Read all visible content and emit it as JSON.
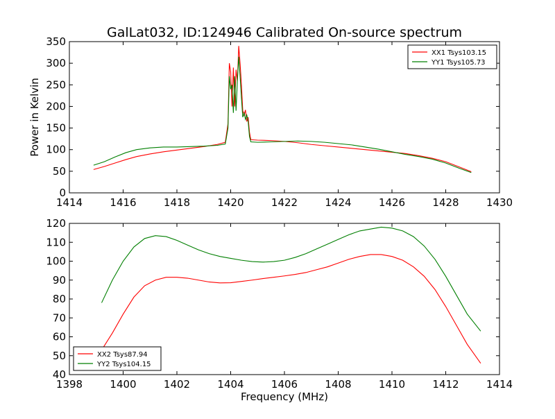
{
  "title": "GalLat032, ID:124946 Calibrated On-source spectrum",
  "colors": {
    "xx": "#ff0000",
    "yy": "#007f00",
    "axes": "#000000",
    "background": "#ffffff"
  },
  "chart_data": [
    {
      "type": "line",
      "title": "GalLat032, ID:124946 Calibrated On-source spectrum",
      "xlabel": "",
      "ylabel": "Power in Kelvin",
      "xlim": [
        1414,
        1430
      ],
      "ylim": [
        0,
        350
      ],
      "xticks": [
        1414,
        1416,
        1418,
        1420,
        1422,
        1424,
        1426,
        1428,
        1430
      ],
      "yticks": [
        0,
        50,
        100,
        150,
        200,
        250,
        300,
        350
      ],
      "grid": false,
      "legend_position": "top-right",
      "series": [
        {
          "name": "XX1 Tsys103.15",
          "color": "#ff0000",
          "points": [
            [
              1414.9,
              54
            ],
            [
              1415.3,
              61
            ],
            [
              1415.7,
              69
            ],
            [
              1416.1,
              77
            ],
            [
              1416.5,
              84
            ],
            [
              1417.0,
              90
            ],
            [
              1417.5,
              95
            ],
            [
              1418.0,
              99
            ],
            [
              1418.5,
              103
            ],
            [
              1419.0,
              107
            ],
            [
              1419.5,
              112
            ],
            [
              1419.8,
              117
            ],
            [
              1419.9,
              160
            ],
            [
              1419.95,
              300
            ],
            [
              1420.0,
              280
            ],
            [
              1420.05,
              200
            ],
            [
              1420.1,
              290
            ],
            [
              1420.15,
              200
            ],
            [
              1420.2,
              285
            ],
            [
              1420.25,
              260
            ],
            [
              1420.3,
              340
            ],
            [
              1420.35,
              300
            ],
            [
              1420.4,
              250
            ],
            [
              1420.45,
              190
            ],
            [
              1420.5,
              180
            ],
            [
              1420.55,
              192
            ],
            [
              1420.6,
              165
            ],
            [
              1420.65,
              175
            ],
            [
              1420.7,
              140
            ],
            [
              1420.75,
              123
            ],
            [
              1421.0,
              122
            ],
            [
              1421.5,
              121
            ],
            [
              1422.0,
              119
            ],
            [
              1422.5,
              116
            ],
            [
              1423.0,
              112
            ],
            [
              1423.5,
              109
            ],
            [
              1424.0,
              106
            ],
            [
              1424.5,
              103
            ],
            [
              1425.0,
              100
            ],
            [
              1425.5,
              97
            ],
            [
              1426.0,
              94
            ],
            [
              1426.5,
              91
            ],
            [
              1427.0,
              86
            ],
            [
              1427.5,
              80
            ],
            [
              1428.0,
              72
            ],
            [
              1428.5,
              60
            ],
            [
              1428.95,
              49
            ]
          ]
        },
        {
          "name": "YY1 Tsys105.73",
          "color": "#007f00",
          "points": [
            [
              1414.9,
              64
            ],
            [
              1415.3,
              72
            ],
            [
              1415.7,
              83
            ],
            [
              1416.1,
              93
            ],
            [
              1416.5,
              100
            ],
            [
              1417.0,
              104
            ],
            [
              1417.5,
              106
            ],
            [
              1418.0,
              106
            ],
            [
              1418.5,
              107
            ],
            [
              1419.0,
              108
            ],
            [
              1419.5,
              110
            ],
            [
              1419.8,
              113
            ],
            [
              1419.9,
              150
            ],
            [
              1419.95,
              270
            ],
            [
              1420.0,
              240
            ],
            [
              1420.05,
              250
            ],
            [
              1420.1,
              185
            ],
            [
              1420.15,
              270
            ],
            [
              1420.2,
              190
            ],
            [
              1420.25,
              260
            ],
            [
              1420.3,
              315
            ],
            [
              1420.35,
              270
            ],
            [
              1420.4,
              220
            ],
            [
              1420.45,
              175
            ],
            [
              1420.5,
              185
            ],
            [
              1420.55,
              170
            ],
            [
              1420.6,
              180
            ],
            [
              1420.65,
              165
            ],
            [
              1420.7,
              130
            ],
            [
              1420.75,
              118
            ],
            [
              1421.0,
              117
            ],
            [
              1421.5,
              118
            ],
            [
              1422.0,
              119
            ],
            [
              1422.5,
              120
            ],
            [
              1423.0,
              119
            ],
            [
              1423.5,
              117
            ],
            [
              1424.0,
              114
            ],
            [
              1424.5,
              111
            ],
            [
              1425.0,
              106
            ],
            [
              1425.5,
              101
            ],
            [
              1426.0,
              95
            ],
            [
              1426.5,
              89
            ],
            [
              1427.0,
              84
            ],
            [
              1427.5,
              78
            ],
            [
              1428.0,
              69
            ],
            [
              1428.5,
              57
            ],
            [
              1428.95,
              47
            ]
          ]
        }
      ]
    },
    {
      "type": "line",
      "title": "",
      "xlabel": "Frequency (MHz)",
      "ylabel": "",
      "xlim": [
        1398,
        1414
      ],
      "ylim": [
        40,
        120
      ],
      "xticks": [
        1398,
        1400,
        1402,
        1404,
        1406,
        1408,
        1410,
        1412,
        1414
      ],
      "yticks": [
        40,
        50,
        60,
        70,
        80,
        90,
        100,
        110,
        120
      ],
      "grid": false,
      "legend_position": "bottom-left",
      "series": [
        {
          "name": "XX2 Tsys87.94",
          "color": "#ff0000",
          "points": [
            [
              1399.2,
              53
            ],
            [
              1399.6,
              62
            ],
            [
              1400.0,
              72
            ],
            [
              1400.4,
              81
            ],
            [
              1400.8,
              87
            ],
            [
              1401.2,
              90
            ],
            [
              1401.6,
              91.5
            ],
            [
              1402.0,
              91.5
            ],
            [
              1402.4,
              91
            ],
            [
              1402.8,
              90
            ],
            [
              1403.2,
              89
            ],
            [
              1403.6,
              88.5
            ],
            [
              1404.0,
              88.6
            ],
            [
              1404.4,
              89.3
            ],
            [
              1404.8,
              90
            ],
            [
              1405.2,
              90.8
            ],
            [
              1405.6,
              91.5
            ],
            [
              1406.0,
              92.2
            ],
            [
              1406.4,
              93
            ],
            [
              1406.8,
              94
            ],
            [
              1407.2,
              95.5
            ],
            [
              1407.6,
              97
            ],
            [
              1408.0,
              99
            ],
            [
              1408.4,
              101
            ],
            [
              1408.8,
              102.5
            ],
            [
              1409.2,
              103.5
            ],
            [
              1409.6,
              103.5
            ],
            [
              1410.0,
              102.5
            ],
            [
              1410.4,
              100.5
            ],
            [
              1410.8,
              97
            ],
            [
              1411.2,
              92
            ],
            [
              1411.6,
              85
            ],
            [
              1412.0,
              76
            ],
            [
              1412.4,
              66
            ],
            [
              1412.8,
              56
            ],
            [
              1413.3,
              46
            ]
          ]
        },
        {
          "name": "YY2 Tsys104.15",
          "color": "#007f00",
          "points": [
            [
              1399.2,
              78
            ],
            [
              1399.6,
              90
            ],
            [
              1400.0,
              100
            ],
            [
              1400.4,
              107.5
            ],
            [
              1400.8,
              112
            ],
            [
              1401.2,
              113.5
            ],
            [
              1401.6,
              113
            ],
            [
              1402.0,
              111
            ],
            [
              1402.4,
              108.5
            ],
            [
              1402.8,
              106
            ],
            [
              1403.2,
              104
            ],
            [
              1403.6,
              102.5
            ],
            [
              1404.0,
              101.5
            ],
            [
              1404.4,
              100.5
            ],
            [
              1404.8,
              99.8
            ],
            [
              1405.2,
              99.5
            ],
            [
              1405.6,
              99.8
            ],
            [
              1406.0,
              100.5
            ],
            [
              1406.4,
              102
            ],
            [
              1406.8,
              104
            ],
            [
              1407.2,
              106.5
            ],
            [
              1407.6,
              109
            ],
            [
              1408.0,
              111.5
            ],
            [
              1408.4,
              114
            ],
            [
              1408.8,
              116
            ],
            [
              1409.2,
              117
            ],
            [
              1409.6,
              118
            ],
            [
              1410.0,
              117.5
            ],
            [
              1410.4,
              116
            ],
            [
              1410.8,
              113
            ],
            [
              1411.2,
              108
            ],
            [
              1411.6,
              101
            ],
            [
              1412.0,
              92
            ],
            [
              1412.4,
              82
            ],
            [
              1412.8,
              72
            ],
            [
              1413.3,
              63
            ]
          ]
        }
      ]
    }
  ]
}
